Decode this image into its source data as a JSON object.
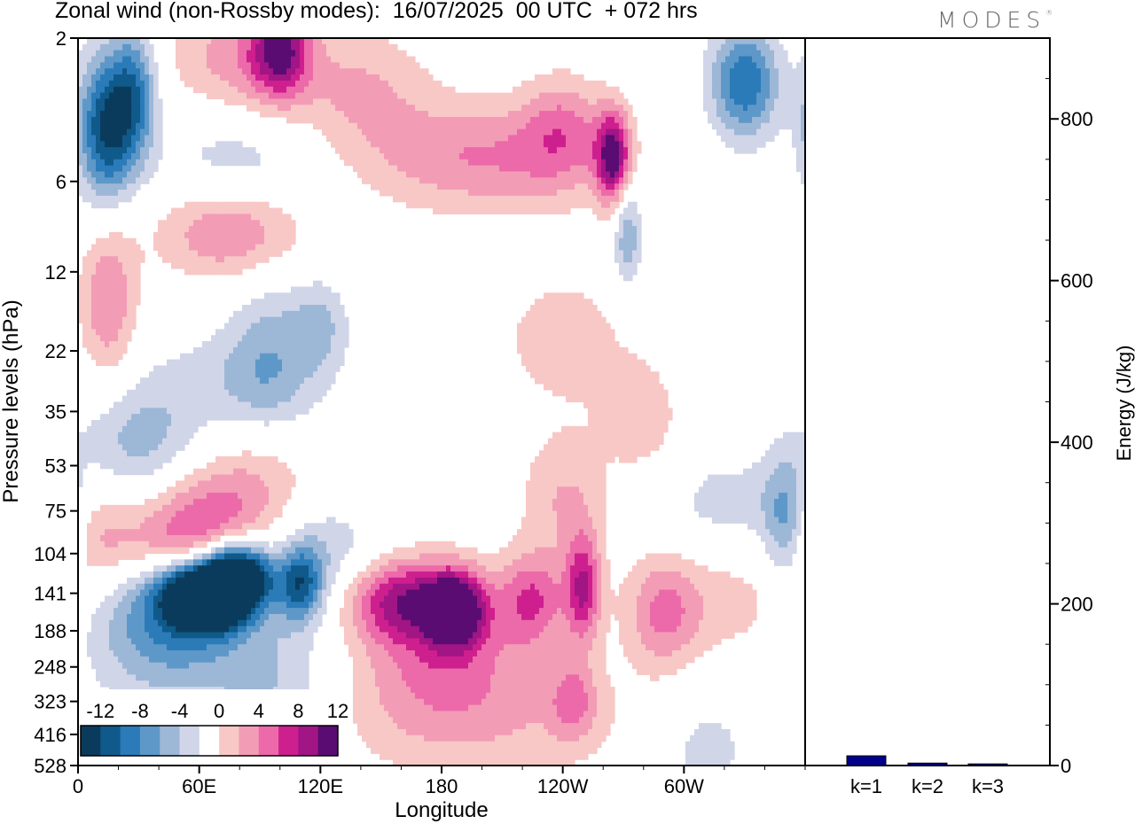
{
  "header": {
    "title": "Zonal wind (non-Rossby modes):  16/07/2025  00 UTC  + 072 hrs",
    "logo": "MODES",
    "logo_mark": "®"
  },
  "colors": {
    "levels": [
      "#0b3b5c",
      "#0f5a8a",
      "#2b7bb9",
      "#5e98c8",
      "#9db7d7",
      "#d0d5e8",
      "#ffffff",
      "#f8c8c6",
      "#f39cb6",
      "#ec6aa9",
      "#ce1f8f",
      "#a11585",
      "#5a0c72"
    ],
    "energy_bar": "#00008b"
  },
  "chart_data": [
    {
      "type": "heatmap",
      "title": "Zonal wind (non-Rossby modes):  16/07/2025  00 UTC  + 072 hrs",
      "xlabel": "Longitude",
      "ylabel": "Pressure levels (hPa)",
      "x_ticks": [
        "0",
        "60E",
        "120E",
        "180",
        "120W",
        "60W"
      ],
      "x_tick_degrees": [
        0,
        60,
        120,
        180,
        240,
        300
      ],
      "xlim": [
        0,
        360
      ],
      "y_ticks": [
        "2",
        "6",
        "12",
        "22",
        "35",
        "53",
        "75",
        "104",
        "141",
        "188",
        "248",
        "323",
        "416",
        "528"
      ],
      "y_scale": "log",
      "colorbar_labels": [
        "-12",
        "-8",
        "-4",
        "0",
        "4",
        "8",
        "12"
      ],
      "colorbar_levels": [
        -14,
        -12,
        -10,
        -8,
        -6,
        -4,
        -2,
        2,
        4,
        6,
        8,
        10,
        12,
        14
      ],
      "blobs": [
        {
          "lon": 14,
          "plev": 4,
          "value": -12,
          "w": 10,
          "h": 0.4
        },
        {
          "lon": 28,
          "plev": 3,
          "value": -8,
          "w": 8,
          "h": 0.35
        },
        {
          "lon": 100,
          "plev": 2.2,
          "value": 10,
          "w": 10,
          "h": 0.25
        },
        {
          "lon": 80,
          "plev": 2.3,
          "value": 5,
          "w": 25,
          "h": 0.3
        },
        {
          "lon": 140,
          "plev": 3,
          "value": 4,
          "w": 25,
          "h": 0.35
        },
        {
          "lon": 200,
          "plev": 5,
          "value": 6,
          "w": 40,
          "h": 0.3
        },
        {
          "lon": 240,
          "plev": 4,
          "value": 5,
          "w": 15,
          "h": 0.3
        },
        {
          "lon": 265,
          "plev": 5,
          "value": 12,
          "w": 6,
          "h": 0.25
        },
        {
          "lon": 272,
          "plev": 9,
          "value": -6,
          "w": 5,
          "h": 0.3
        },
        {
          "lon": 330,
          "plev": 2.8,
          "value": -10,
          "w": 12,
          "h": 0.3
        },
        {
          "lon": 75,
          "plev": 9,
          "value": 6,
          "w": 25,
          "h": 0.25
        },
        {
          "lon": 15,
          "plev": 15,
          "value": 6,
          "w": 10,
          "h": 0.45
        },
        {
          "lon": 80,
          "plev": 5,
          "value": -3,
          "w": 30,
          "h": 0.25
        },
        {
          "lon": 95,
          "plev": 22,
          "value": -4,
          "w": 15,
          "h": 0.45
        },
        {
          "lon": 120,
          "plev": 18,
          "value": -4,
          "w": 10,
          "h": 0.25
        },
        {
          "lon": 240,
          "plev": 20,
          "value": 3,
          "w": 25,
          "h": 0.4
        },
        {
          "lon": 280,
          "plev": 38,
          "value": 3,
          "w": 15,
          "h": 0.35
        },
        {
          "lon": 30,
          "plev": 45,
          "value": -5,
          "w": 20,
          "h": 0.35
        },
        {
          "lon": 80,
          "plev": 28,
          "value": -3,
          "w": 30,
          "h": 0.3
        },
        {
          "lon": 60,
          "plev": 75,
          "value": 6,
          "w": 25,
          "h": 0.25
        },
        {
          "lon": 55,
          "plev": 100,
          "value": 5,
          "w": 30,
          "h": 0.2
        },
        {
          "lon": 10,
          "plev": 88,
          "value": 3,
          "w": 12,
          "h": 0.3
        },
        {
          "lon": 90,
          "plev": 55,
          "value": 3,
          "w": 20,
          "h": 0.3
        },
        {
          "lon": 240,
          "plev": 68,
          "value": 4,
          "w": 15,
          "h": 0.35
        },
        {
          "lon": 320,
          "plev": 72,
          "value": -3,
          "w": 25,
          "h": 0.3
        },
        {
          "lon": 350,
          "plev": 80,
          "value": -6,
          "w": 8,
          "h": 0.35
        },
        {
          "lon": 120,
          "plev": 100,
          "value": -4,
          "w": 20,
          "h": 0.25
        },
        {
          "lon": 62,
          "plev": 142,
          "value": -20,
          "w": 14,
          "h": 0.18
        },
        {
          "lon": 75,
          "plev": 125,
          "value": -14,
          "w": 9,
          "h": 0.2
        },
        {
          "lon": 110,
          "plev": 132,
          "value": -10,
          "w": 8,
          "h": 0.2
        },
        {
          "lon": 88,
          "plev": 122,
          "value": -8,
          "w": 8,
          "h": 0.18
        },
        {
          "lon": 40,
          "plev": 170,
          "value": -6,
          "w": 25,
          "h": 0.35
        },
        {
          "lon": 65,
          "plev": 230,
          "value": -3,
          "w": 40,
          "h": 0.4
        },
        {
          "lon": 100,
          "plev": 330,
          "value": -3,
          "w": 20,
          "h": 0.4
        },
        {
          "lon": 160,
          "plev": 148,
          "value": 9,
          "w": 18,
          "h": 0.22
        },
        {
          "lon": 187,
          "plev": 158,
          "value": 13,
          "w": 10,
          "h": 0.2
        },
        {
          "lon": 180,
          "plev": 210,
          "value": 6,
          "w": 30,
          "h": 0.4
        },
        {
          "lon": 225,
          "plev": 148,
          "value": 7,
          "w": 12,
          "h": 0.25
        },
        {
          "lon": 250,
          "plev": 135,
          "value": 9,
          "w": 6,
          "h": 0.3
        },
        {
          "lon": 290,
          "plev": 165,
          "value": 5,
          "w": 12,
          "h": 0.3
        },
        {
          "lon": 320,
          "plev": 148,
          "value": 3,
          "w": 35,
          "h": 0.35
        },
        {
          "lon": 200,
          "plev": 370,
          "value": 3.5,
          "w": 60,
          "h": 0.35
        },
        {
          "lon": 245,
          "plev": 320,
          "value": 5,
          "w": 8,
          "h": 0.2
        },
        {
          "lon": 310,
          "plev": 450,
          "value": -3,
          "w": 20,
          "h": 0.35
        }
      ]
    },
    {
      "type": "bar",
      "categories": [
        "k=1",
        "k=2",
        "k=3"
      ],
      "values": [
        12,
        3,
        2
      ],
      "ylabel": "Energy (J/kg)",
      "ylim": [
        0,
        900
      ],
      "y_ticks": [
        0,
        200,
        400,
        600,
        800
      ]
    }
  ]
}
